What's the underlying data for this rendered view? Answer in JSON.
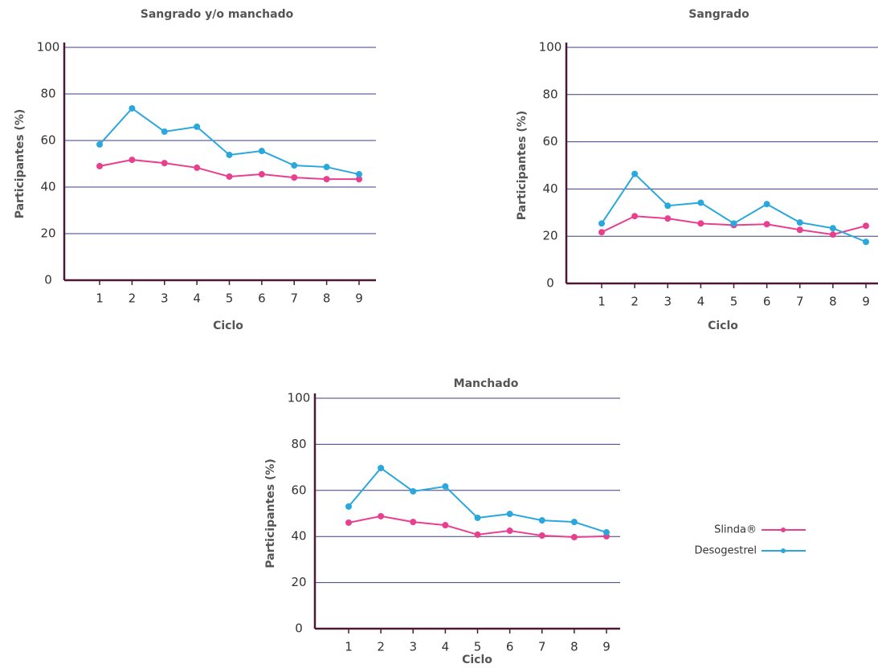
{
  "chart_data": [
    {
      "type": "line",
      "title": "Sangrado y/o manchado",
      "x_label": "Ciclo",
      "y_label": "Participantes (%)",
      "categories": [
        "1",
        "2",
        "3",
        "4",
        "5",
        "6",
        "7",
        "8",
        "9"
      ],
      "ylim": [
        0,
        100
      ],
      "yticks": [
        0,
        20,
        40,
        60,
        80,
        100
      ],
      "grid": true,
      "series": [
        {
          "color": "#e8408f",
          "values": [
            49,
            51.7,
            50.3,
            48.3,
            44.5,
            45.5,
            44.1,
            43.4,
            43.4
          ]
        },
        {
          "color": "#2aa7dd",
          "values": [
            58.3,
            73.8,
            63.8,
            65.9,
            53.8,
            55.5,
            49.3,
            48.6,
            45.5
          ]
        }
      ]
    },
    {
      "type": "line",
      "title": "Sangrado",
      "x_label": "Ciclo",
      "y_label": "Participantes (%)",
      "categories": [
        "1",
        "2",
        "3",
        "4",
        "5",
        "6",
        "7",
        "8",
        "9"
      ],
      "ylim": [
        0,
        100
      ],
      "yticks": [
        0,
        20,
        40,
        60,
        80,
        100
      ],
      "grid": true,
      "series": [
        {
          "color": "#e8408f",
          "values": [
            21.7,
            28.5,
            27.5,
            25.4,
            24.7,
            25.1,
            22.7,
            20.7,
            24.4
          ]
        },
        {
          "color": "#2aa7dd",
          "values": [
            25.4,
            46.4,
            32.9,
            34.2,
            25.4,
            33.6,
            25.8,
            23.4,
            17.6
          ]
        }
      ]
    },
    {
      "type": "line",
      "title": "Manchado",
      "x_label": "Ciclo",
      "y_label": "Participantes (%)",
      "categories": [
        "1",
        "2",
        "3",
        "4",
        "5",
        "6",
        "7",
        "8",
        "9"
      ],
      "ylim": [
        0,
        100
      ],
      "yticks": [
        0,
        20,
        40,
        60,
        80,
        100
      ],
      "grid": true,
      "series": [
        {
          "name": "Slinda®",
          "color": "#e8408f",
          "values": [
            46,
            48.8,
            46.3,
            44.9,
            40.8,
            42.5,
            40.4,
            39.7,
            40.1
          ]
        },
        {
          "name": "Desogestrel",
          "color": "#2aa7dd",
          "values": [
            53,
            69.7,
            59.6,
            61.7,
            48.1,
            49.8,
            47,
            46.3,
            41.8
          ]
        }
      ]
    }
  ]
}
